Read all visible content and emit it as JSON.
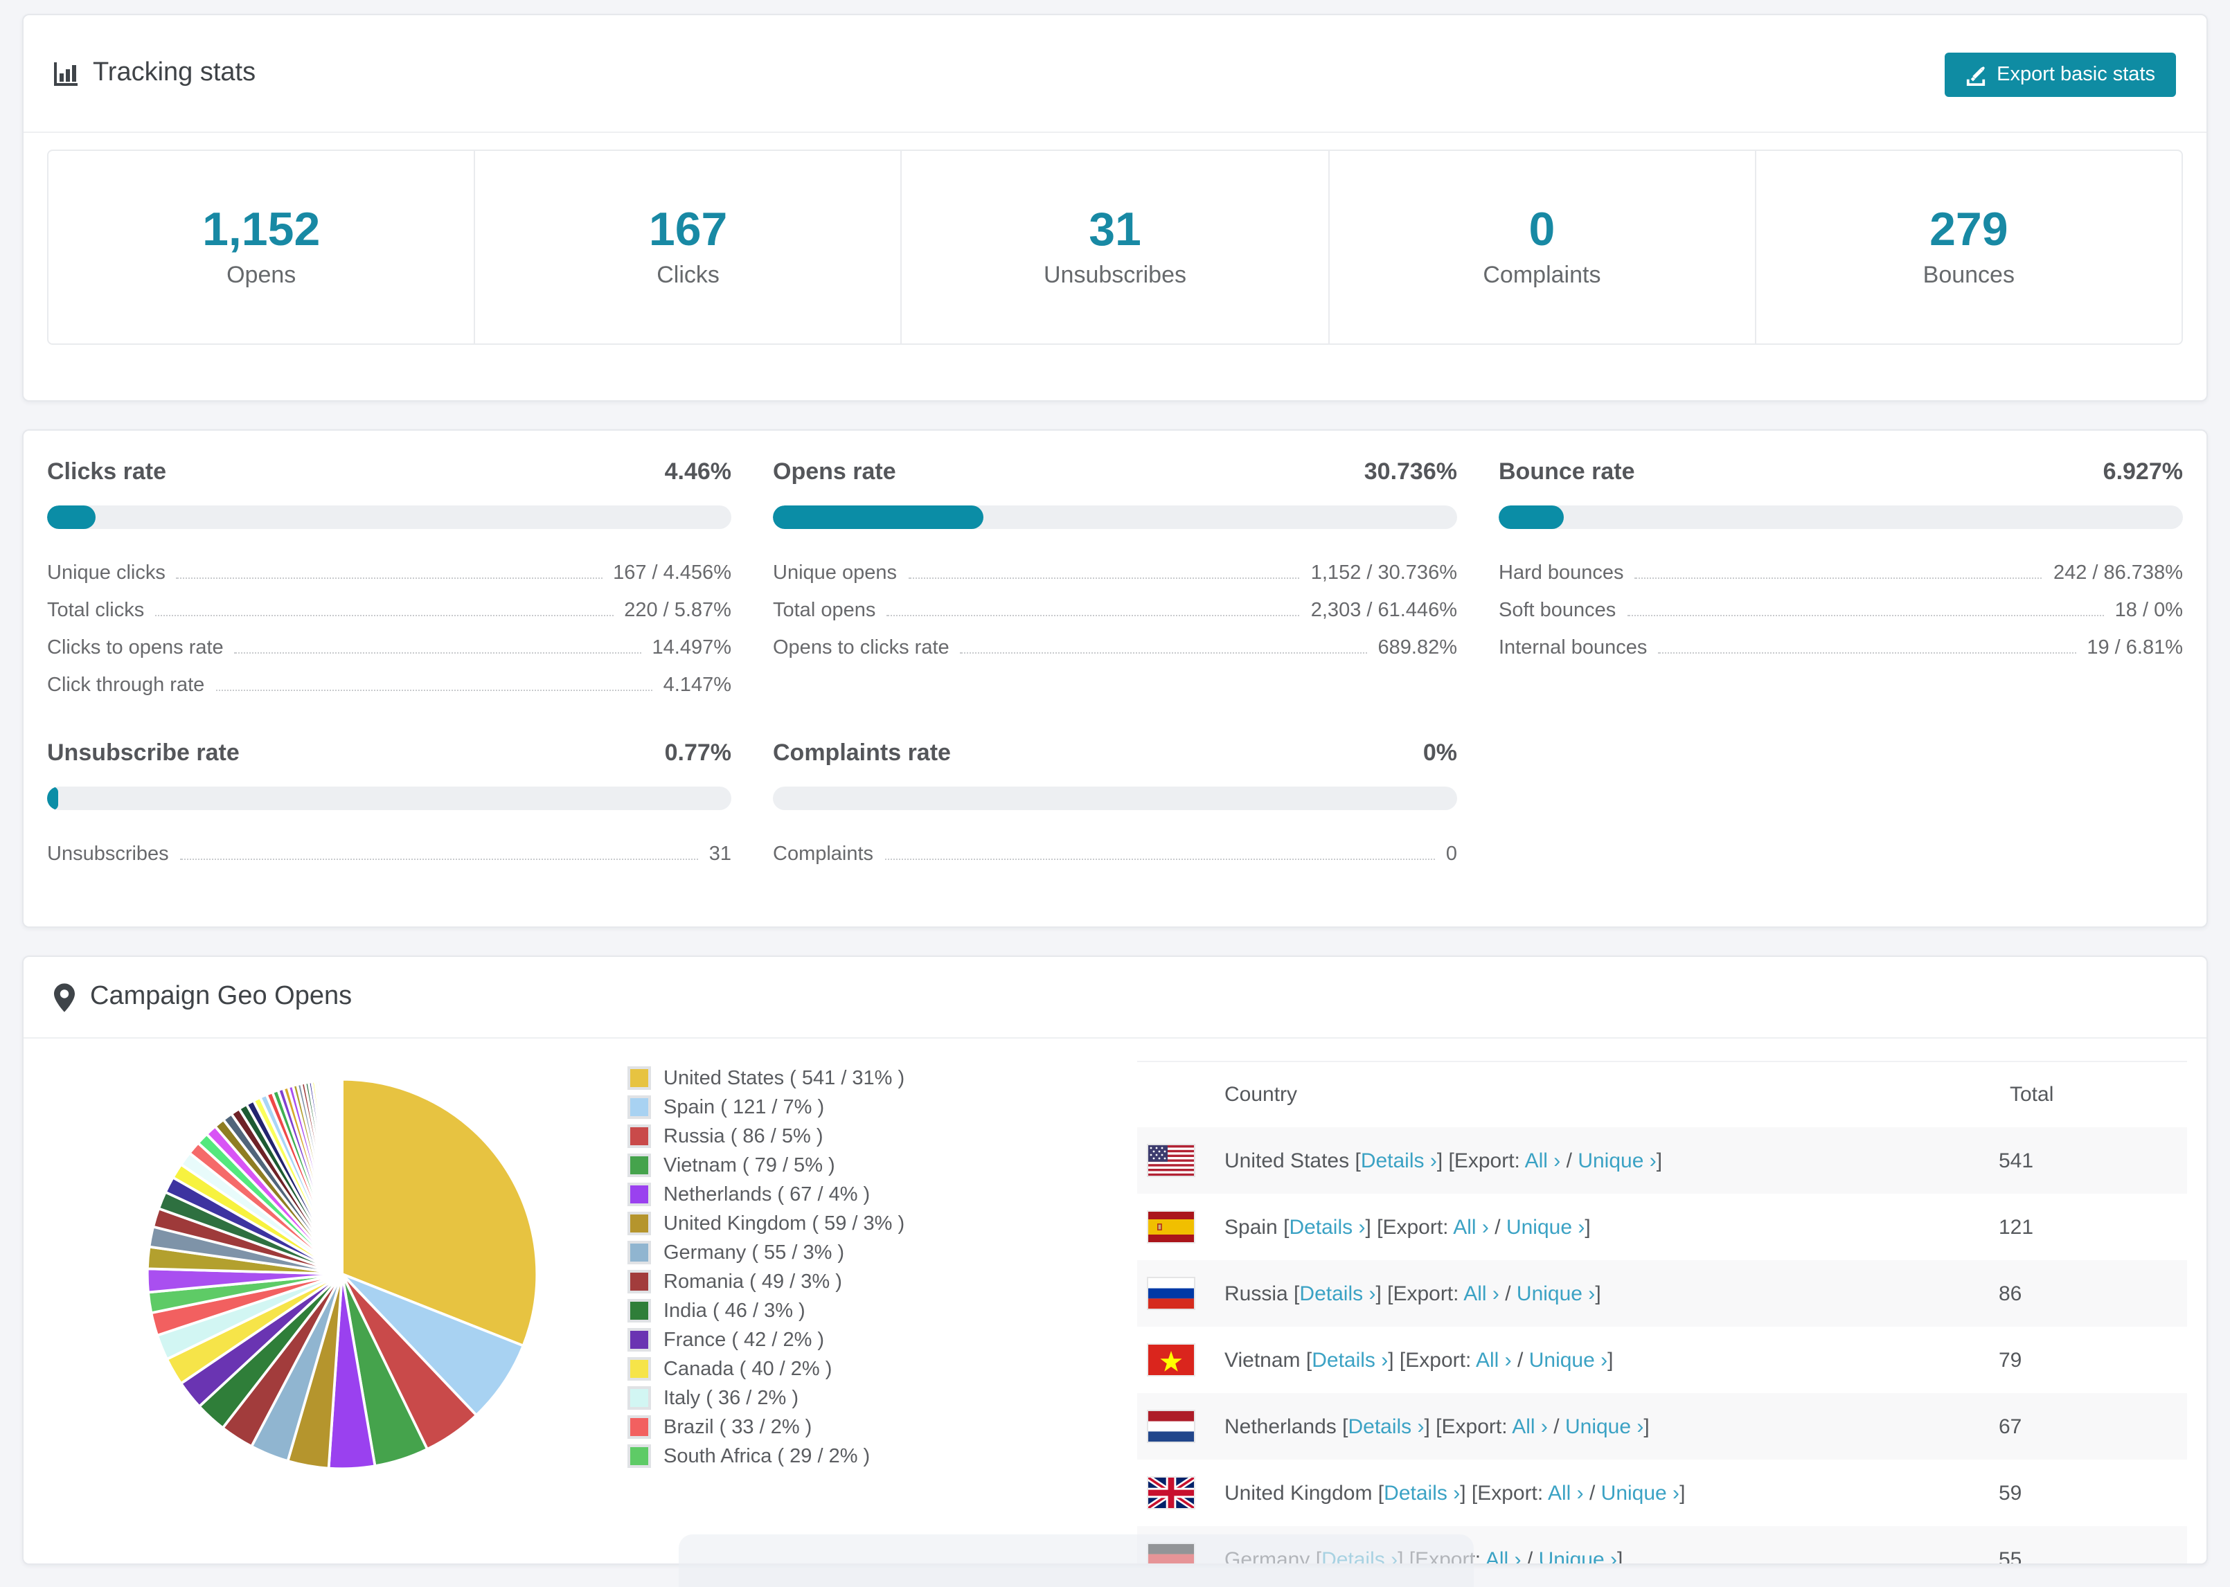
{
  "theme": {
    "accent": "#0f8ca3",
    "stat_number_color": "#1889a4",
    "link_color": "#3ba2c4",
    "bar_track_color": "#edeff2",
    "bar_fill_color": "#0b8da6"
  },
  "tracking": {
    "title": "Tracking stats",
    "export_button": "Export basic stats",
    "stats": [
      {
        "value": "1,152",
        "label": "Opens"
      },
      {
        "value": "167",
        "label": "Clicks"
      },
      {
        "value": "31",
        "label": "Unsubscribes"
      },
      {
        "value": "0",
        "label": "Complaints"
      },
      {
        "value": "279",
        "label": "Bounces"
      }
    ]
  },
  "rates": {
    "blocks": [
      {
        "row": 1,
        "title": "Clicks rate",
        "value": "4.46%",
        "bar_pct": 7,
        "details": [
          {
            "label": "Unique clicks",
            "value": "167 / 4.456%"
          },
          {
            "label": "Total clicks",
            "value": "220 / 5.87%"
          },
          {
            "label": "Clicks to opens rate",
            "value": "14.497%"
          },
          {
            "label": "Click through rate",
            "value": "4.147%"
          }
        ]
      },
      {
        "row": 1,
        "title": "Opens rate",
        "value": "30.736%",
        "bar_pct": 30.7,
        "details": [
          {
            "label": "Unique opens",
            "value": "1,152 / 30.736%"
          },
          {
            "label": "Total opens",
            "value": "2,303 / 61.446%"
          },
          {
            "label": "Opens to clicks rate",
            "value": "689.82%"
          }
        ]
      },
      {
        "row": 1,
        "title": "Bounce rate",
        "value": "6.927%",
        "bar_pct": 9.5,
        "details": [
          {
            "label": "Hard bounces",
            "value": "242 / 86.738%"
          },
          {
            "label": "Soft bounces",
            "value": "18 / 0%"
          },
          {
            "label": "Internal bounces",
            "value": "19 / 6.81%"
          }
        ]
      },
      {
        "row": 2,
        "title": "Unsubscribe rate",
        "value": "0.77%",
        "bar_pct": 1.5,
        "details": [
          {
            "label": "Unsubscribes",
            "value": "31"
          }
        ]
      },
      {
        "row": 2,
        "title": "Complaints rate",
        "value": "0%",
        "bar_pct": 0,
        "details": [
          {
            "label": "Complaints",
            "value": "0"
          }
        ]
      }
    ]
  },
  "geo": {
    "title": "Campaign Geo Opens",
    "pin_icon": "map-marker-icon",
    "table": {
      "headers": [
        "Country",
        "Total"
      ],
      "link_labels": {
        "details": "Details",
        "export_prefix": "Export:",
        "all": "All",
        "unique": "Unique",
        "chevron": "›"
      },
      "rows": [
        {
          "country": "United States",
          "flag": "us",
          "total": "541"
        },
        {
          "country": "Spain",
          "flag": "es",
          "total": "121"
        },
        {
          "country": "Russia",
          "flag": "ru",
          "total": "86"
        },
        {
          "country": "Vietnam",
          "flag": "vn",
          "total": "79"
        },
        {
          "country": "Netherlands",
          "flag": "nl",
          "total": "67"
        },
        {
          "country": "United Kingdom",
          "flag": "gb",
          "total": "59"
        },
        {
          "country": "Germany",
          "flag": "de",
          "total": "55"
        }
      ]
    }
  },
  "chart_data": {
    "type": "pie",
    "title": "Campaign Geo Opens",
    "unit": "opens",
    "start_angle_deg": -90,
    "direction": "clockwise",
    "legend_position": "right",
    "slices": [
      {
        "label": "United States",
        "value": 541,
        "pct": 31,
        "pct_exact": 31.0,
        "color": "#e7c341"
      },
      {
        "label": "Spain",
        "value": 121,
        "pct": 7,
        "pct_exact": 6.9,
        "color": "#a8d2f2"
      },
      {
        "label": "Russia",
        "value": 86,
        "pct": 5,
        "pct_exact": 4.9,
        "color": "#c94a4a"
      },
      {
        "label": "Vietnam",
        "value": 79,
        "pct": 5,
        "pct_exact": 4.5,
        "color": "#45a34c"
      },
      {
        "label": "Netherlands",
        "value": 67,
        "pct": 4,
        "pct_exact": 3.8,
        "color": "#9a41ef"
      },
      {
        "label": "United Kingdom",
        "value": 59,
        "pct": 3,
        "pct_exact": 3.4,
        "color": "#b5952d"
      },
      {
        "label": "Germany",
        "value": 55,
        "pct": 3,
        "pct_exact": 3.2,
        "color": "#90b5d0"
      },
      {
        "label": "Romania",
        "value": 49,
        "pct": 3,
        "pct_exact": 2.8,
        "color": "#a23c3c"
      },
      {
        "label": "India",
        "value": 46,
        "pct": 3,
        "pct_exact": 2.6,
        "color": "#2f7e39"
      },
      {
        "label": "France",
        "value": 42,
        "pct": 2,
        "pct_exact": 2.4,
        "color": "#6a34b2"
      },
      {
        "label": "Canada",
        "value": 40,
        "pct": 2,
        "pct_exact": 2.3,
        "color": "#f6e449"
      },
      {
        "label": "Italy",
        "value": 36,
        "pct": 2,
        "pct_exact": 2.1,
        "color": "#d2f6f3"
      },
      {
        "label": "Brazil",
        "value": 33,
        "pct": 2,
        "pct_exact": 1.9,
        "color": "#f26060"
      },
      {
        "label": "South Africa",
        "value": 29,
        "pct": 2,
        "pct_exact": 1.7,
        "color": "#5ecb66"
      }
    ],
    "other_slices": {
      "approx_total_pct": 26.5,
      "count": 44,
      "decay": 0.93,
      "palette": [
        "#a94ff0",
        "#b3a02e",
        "#7e93a8",
        "#9e3a3a",
        "#2e7040",
        "#3d33a0",
        "#f7f23f",
        "#e8fbfb",
        "#f56a6a",
        "#54e87d",
        "#d855f5",
        "#8f7d22",
        "#50657a",
        "#6e2227",
        "#1d5a31",
        "#23246e",
        "#fbff5a",
        "#a9d6f5",
        "#ef4848",
        "#3fae52",
        "#8040d0",
        "#d6a92a"
      ]
    }
  }
}
